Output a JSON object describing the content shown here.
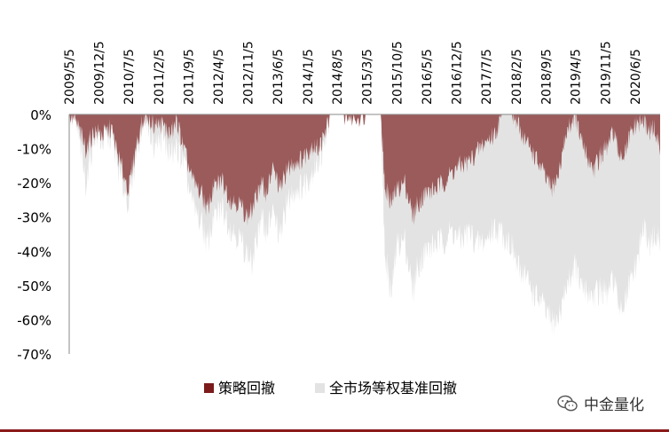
{
  "chart_data": {
    "type": "area",
    "title": "",
    "xlabel": "",
    "ylabel": "",
    "ylim": [
      -70,
      0
    ],
    "y_tick_labels": [
      "0%",
      "-10%",
      "-20%",
      "-30%",
      "-40%",
      "-50%",
      "-60%",
      "-70%"
    ],
    "y_tick_values": [
      0,
      -10,
      -20,
      -30,
      -40,
      -50,
      -60,
      -70
    ],
    "x_tick_labels": [
      "2009/5/5",
      "2009/12/5",
      "2010/7/5",
      "2011/2/5",
      "2011/9/5",
      "2012/4/5",
      "2012/11/5",
      "2013/6/5",
      "2014/1/5",
      "2014/8/5",
      "2015/3/5",
      "2015/10/5",
      "2016/5/5",
      "2016/12/5",
      "2017/7/5",
      "2018/2/5",
      "2018/9/5",
      "2019/4/5",
      "2019/11/5",
      "2020/6/5"
    ],
    "x_range": [
      "2009/5/5",
      "2020/11/30"
    ],
    "legend_position": "bottom",
    "series": [
      {
        "name": "策略回撤",
        "color": "#9b5b5b",
        "legend_color": "#7b1b1b",
        "points": [
          [
            "2009/5/5",
            0
          ],
          [
            "2009/7/1",
            -3
          ],
          [
            "2009/8/31",
            -10
          ],
          [
            "2009/11/1",
            -5
          ],
          [
            "2010/1/1",
            -6
          ],
          [
            "2010/3/1",
            -4
          ],
          [
            "2010/5/1",
            -14
          ],
          [
            "2010/7/5",
            -22
          ],
          [
            "2010/9/1",
            -8
          ],
          [
            "2010/11/1",
            0
          ],
          [
            "2011/1/1",
            -3
          ],
          [
            "2011/3/1",
            -3
          ],
          [
            "2011/5/1",
            -6
          ],
          [
            "2011/6/15",
            -2
          ],
          [
            "2011/8/1",
            -10
          ],
          [
            "2011/10/1",
            -19
          ],
          [
            "2011/12/15",
            -24
          ],
          [
            "2012/1/15",
            -28
          ],
          [
            "2012/3/1",
            -22
          ],
          [
            "2012/5/1",
            -19
          ],
          [
            "2012/7/1",
            -25
          ],
          [
            "2012/9/1",
            -26
          ],
          [
            "2012/11/1",
            -30
          ],
          [
            "2012/12/5",
            -28
          ],
          [
            "2013/2/1",
            -20
          ],
          [
            "2013/3/15",
            -23
          ],
          [
            "2013/5/1",
            -16
          ],
          [
            "2013/6/25",
            -22
          ],
          [
            "2013/8/1",
            -17
          ],
          [
            "2013/10/1",
            -14
          ],
          [
            "2013/12/1",
            -13
          ],
          [
            "2014/2/1",
            -9
          ],
          [
            "2014/3/15",
            -10
          ],
          [
            "2014/5/1",
            -7
          ],
          [
            "2014/6/15",
            0
          ],
          [
            "2014/9/1",
            0
          ],
          [
            "2014/12/1",
            -1
          ],
          [
            "2015/3/1",
            0
          ],
          [
            "2015/6/12",
            0
          ],
          [
            "2015/7/10",
            -21
          ],
          [
            "2015/8/26",
            -26
          ],
          [
            "2015/10/5",
            -22
          ],
          [
            "2015/12/1",
            -20
          ],
          [
            "2016/1/28",
            -30
          ],
          [
            "2016/3/1",
            -26
          ],
          [
            "2016/5/1",
            -23
          ],
          [
            "2016/7/1",
            -22
          ],
          [
            "2016/9/1",
            -20
          ],
          [
            "2016/11/1",
            -17
          ],
          [
            "2017/1/1",
            -15
          ],
          [
            "2017/3/1",
            -14
          ],
          [
            "2017/5/1",
            -11
          ],
          [
            "2017/7/1",
            -8
          ],
          [
            "2017/9/1",
            -6
          ],
          [
            "2017/11/1",
            0
          ],
          [
            "2018/1/1",
            0
          ],
          [
            "2018/2/15",
            -3
          ],
          [
            "2018/4/1",
            -7
          ],
          [
            "2018/6/1",
            -11
          ],
          [
            "2018/8/1",
            -16
          ],
          [
            "2018/10/15",
            -22
          ],
          [
            "2018/12/1",
            -18
          ],
          [
            "2019/2/1",
            -5
          ],
          [
            "2019/4/1",
            0
          ],
          [
            "2019/5/15",
            -8
          ],
          [
            "2019/7/1",
            -13
          ],
          [
            "2019/8/15",
            -16
          ],
          [
            "2019/10/1",
            -12
          ],
          [
            "2019/11/15",
            -10
          ],
          [
            "2020/1/1",
            -5
          ],
          [
            "2020/2/3",
            -11
          ],
          [
            "2020/3/23",
            -12
          ],
          [
            "2020/5/1",
            -6
          ],
          [
            "2020/6/15",
            -3
          ],
          [
            "2020/8/1",
            -2
          ],
          [
            "2020/9/15",
            -5
          ],
          [
            "2020/10/15",
            -4
          ],
          [
            "2020/11/30",
            -10
          ]
        ]
      },
      {
        "name": "全市场等权基准回撤",
        "color": "#e3e3e3",
        "legend_color": "#e3e3e3",
        "points": [
          [
            "2009/5/5",
            0
          ],
          [
            "2009/7/1",
            -4
          ],
          [
            "2009/8/31",
            -20
          ],
          [
            "2009/11/1",
            -6
          ],
          [
            "2010/1/1",
            -8
          ],
          [
            "2010/3/1",
            -6
          ],
          [
            "2010/5/1",
            -18
          ],
          [
            "2010/7/5",
            -26
          ],
          [
            "2010/9/1",
            -10
          ],
          [
            "2010/11/1",
            0
          ],
          [
            "2011/1/1",
            -9
          ],
          [
            "2011/3/1",
            -7
          ],
          [
            "2011/5/1",
            -12
          ],
          [
            "2011/6/15",
            -10
          ],
          [
            "2011/8/1",
            -14
          ],
          [
            "2011/10/1",
            -26
          ],
          [
            "2011/12/15",
            -33
          ],
          [
            "2012/1/15",
            -38
          ],
          [
            "2012/3/1",
            -31
          ],
          [
            "2012/5/1",
            -27
          ],
          [
            "2012/7/1",
            -33
          ],
          [
            "2012/9/1",
            -36
          ],
          [
            "2012/11/1",
            -41
          ],
          [
            "2012/12/5",
            -44
          ],
          [
            "2013/2/1",
            -30
          ],
          [
            "2013/3/15",
            -34
          ],
          [
            "2013/5/1",
            -29
          ],
          [
            "2013/6/25",
            -36
          ],
          [
            "2013/8/1",
            -27
          ],
          [
            "2013/10/1",
            -22
          ],
          [
            "2013/12/1",
            -21
          ],
          [
            "2014/2/1",
            -17
          ],
          [
            "2014/3/15",
            -14
          ],
          [
            "2014/5/1",
            -10
          ],
          [
            "2014/6/15",
            0
          ],
          [
            "2014/9/1",
            0
          ],
          [
            "2014/12/1",
            0
          ],
          [
            "2015/3/1",
            0
          ],
          [
            "2015/6/12",
            0
          ],
          [
            "2015/7/10",
            -40
          ],
          [
            "2015/8/26",
            -53
          ],
          [
            "2015/10/5",
            -38
          ],
          [
            "2015/12/1",
            -37
          ],
          [
            "2016/1/28",
            -52
          ],
          [
            "2016/3/1",
            -44
          ],
          [
            "2016/5/1",
            -40
          ],
          [
            "2016/7/1",
            -38
          ],
          [
            "2016/9/1",
            -37
          ],
          [
            "2016/11/1",
            -34
          ],
          [
            "2017/1/1",
            -37
          ],
          [
            "2017/3/1",
            -34
          ],
          [
            "2017/5/1",
            -38
          ],
          [
            "2017/7/1",
            -37
          ],
          [
            "2017/9/1",
            -33
          ],
          [
            "2017/11/1",
            -35
          ],
          [
            "2018/1/1",
            -38
          ],
          [
            "2018/2/15",
            -45
          ],
          [
            "2018/4/1",
            -46
          ],
          [
            "2018/6/1",
            -52
          ],
          [
            "2018/8/1",
            -55
          ],
          [
            "2018/10/15",
            -61
          ],
          [
            "2018/12/1",
            -60
          ],
          [
            "2019/2/1",
            -50
          ],
          [
            "2019/4/1",
            -44
          ],
          [
            "2019/5/15",
            -51
          ],
          [
            "2019/7/1",
            -52
          ],
          [
            "2019/8/15",
            -53
          ],
          [
            "2019/10/1",
            -51
          ],
          [
            "2019/11/15",
            -53
          ],
          [
            "2020/1/1",
            -48
          ],
          [
            "2020/2/3",
            -55
          ],
          [
            "2020/3/23",
            -56
          ],
          [
            "2020/5/1",
            -49
          ],
          [
            "2020/6/15",
            -44
          ],
          [
            "2020/8/1",
            -33
          ],
          [
            "2020/9/15",
            -38
          ],
          [
            "2020/10/15",
            -36
          ],
          [
            "2020/11/30",
            -37
          ]
        ]
      }
    ]
  },
  "watermark": {
    "brand_text": "中金量化",
    "icon": "wechat-icon"
  },
  "colors": {
    "accent_rule": "#8b1a1a",
    "axis": "#888888",
    "text": "#000000"
  }
}
